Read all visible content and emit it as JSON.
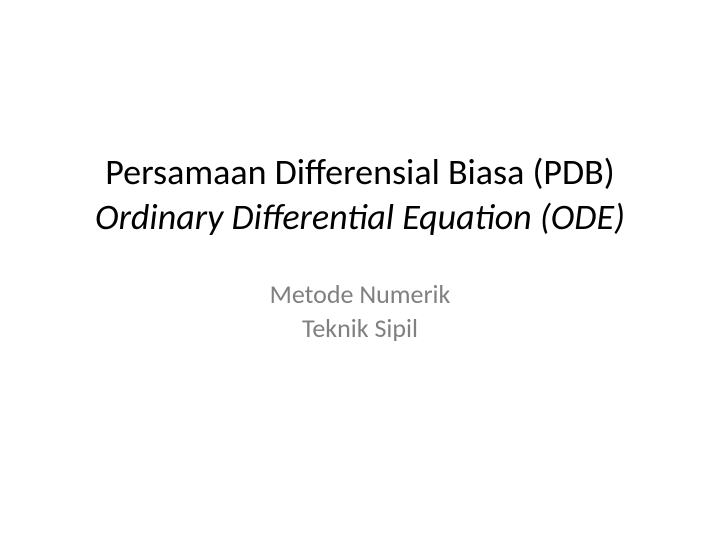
{
  "slide": {
    "title_line1": "Persamaan Differensial Biasa (PDB)",
    "title_line2": "Ordinary Differential Equation (ODE)",
    "subtitle_line1": "Metode Numerik",
    "subtitle_line2": "Teknik Sipil",
    "title_color": "#000000",
    "subtitle_color": "#808080",
    "background_color": "#ffffff",
    "title_fontsize": 36,
    "subtitle_fontsize": 26
  }
}
